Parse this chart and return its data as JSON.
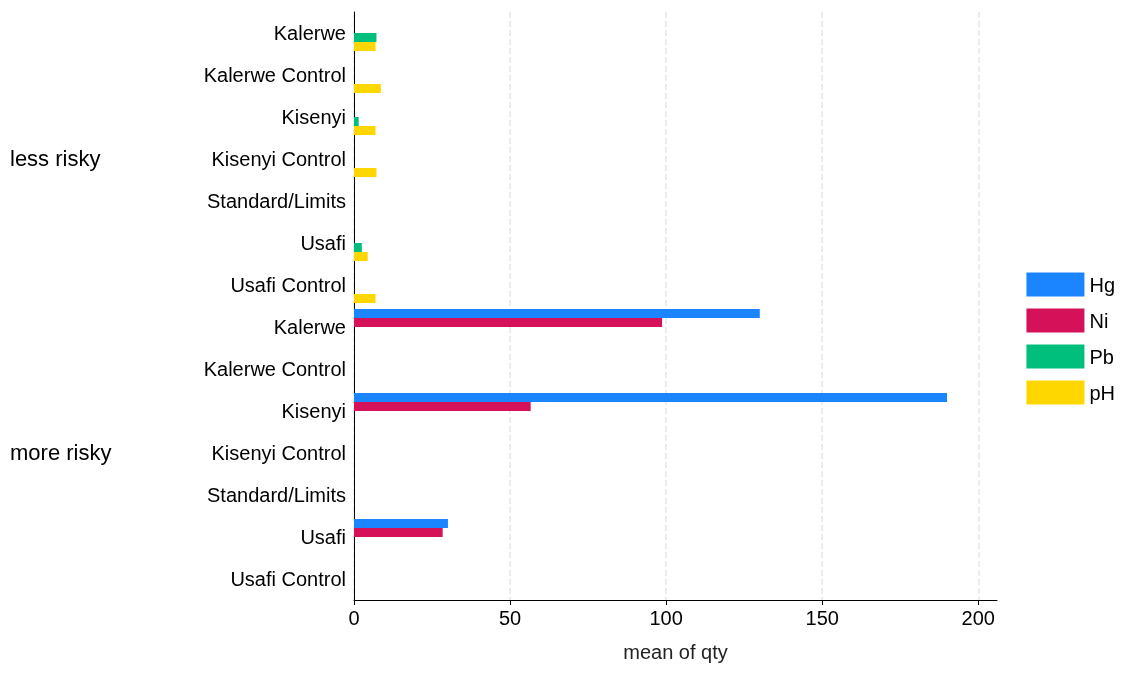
{
  "chart_data": {
    "type": "bar",
    "orientation": "horizontal",
    "xlabel": "mean of qty",
    "categories": [
      "Kalerwe",
      "Kalerwe Control",
      "Kisenyi",
      "Kisenyi Control",
      "Standard/Limits",
      "Usafi",
      "Usafi Control",
      "Kalerwe",
      "Kalerwe Control",
      "Kisenyi",
      "Kisenyi Control",
      "Standard/Limits",
      "Usafi",
      "Usafi Control"
    ],
    "series": [
      {
        "name": "Hg",
        "color": "#1a85ff",
        "values": [
          null,
          null,
          null,
          null,
          null,
          null,
          null,
          130,
          null,
          190,
          null,
          null,
          30.1,
          null
        ]
      },
      {
        "name": "Ni",
        "color": "#d41159",
        "values": [
          null,
          null,
          null,
          null,
          null,
          null,
          null,
          98.7,
          null,
          56.6,
          null,
          null,
          28.4,
          null
        ]
      },
      {
        "name": "Pb",
        "color": "#00bf7d",
        "values": [
          7.2,
          null,
          1.5,
          null,
          null,
          2.5,
          null,
          null,
          null,
          null,
          null,
          null,
          null,
          null
        ]
      },
      {
        "name": "pH",
        "color": "#ffd700",
        "values": [
          6.9,
          8.6,
          6.9,
          7.2,
          null,
          4.4,
          6.9,
          null,
          null,
          null,
          null,
          null,
          null,
          null
        ]
      }
    ],
    "xlim": [
      0,
      206
    ],
    "xticks": [
      0,
      50,
      100,
      150,
      200
    ],
    "grid": "x",
    "legend": "right",
    "annotations": [
      "less risky",
      "more risky"
    ]
  }
}
